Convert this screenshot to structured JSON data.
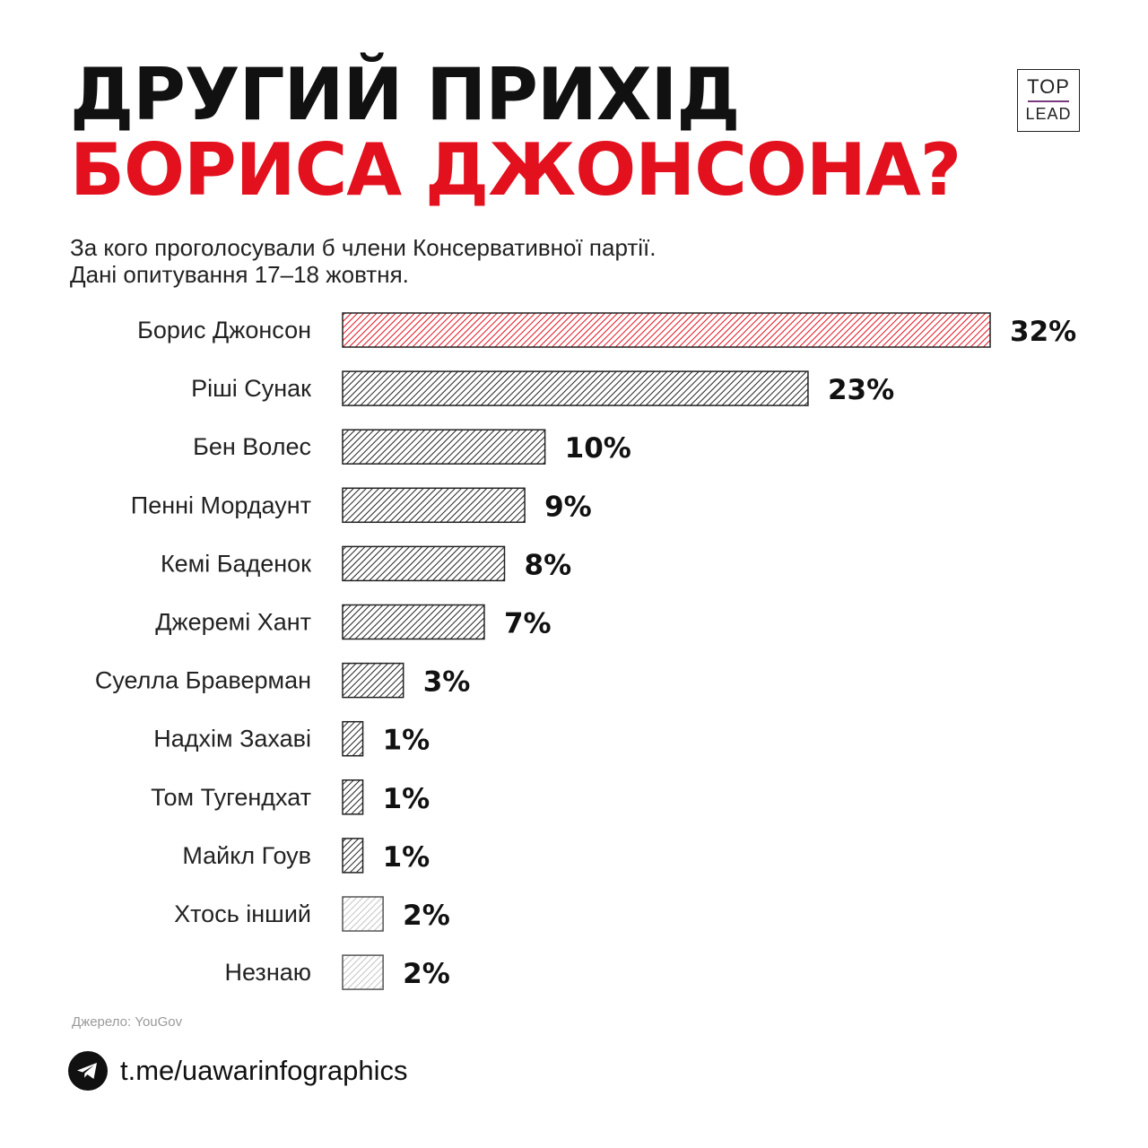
{
  "title": {
    "line1": "ДРУГИЙ ПРИХІД",
    "line2": "БОРИСА ДЖОНСОНА?",
    "line2_color": "#e3101e"
  },
  "logo": {
    "top": "TOP",
    "bottom": "LEAD",
    "accent": "#7a3b7e"
  },
  "subtitle": {
    "line1": "За кого проголосували б члени Консервативної партії.",
    "line2": "Дані опитування 17–18 жовтня."
  },
  "chart_data": {
    "type": "bar",
    "orientation": "horizontal",
    "title": "",
    "xlabel": "",
    "ylabel": "",
    "xlim": [
      0,
      32
    ],
    "grid": false,
    "value_suffix": "%",
    "categories": [
      "Борис Джонсон",
      "Ріші Сунак",
      "Бен Волес",
      "Пенні Мордаунт",
      "Кемі Баденок",
      "Джеремі Хант",
      "Суелла Браверман",
      "Надхім Захаві",
      "Том Тугендхат",
      "Майкл Гоув",
      "Хтось інший",
      "Незнаю"
    ],
    "values": [
      32,
      23,
      10,
      9,
      8,
      7,
      3,
      1,
      1,
      1,
      2,
      2
    ],
    "labels": [
      "32%",
      "23%",
      "10%",
      "9%",
      "8%",
      "7%",
      "3%",
      "1%",
      "1%",
      "1%",
      "2%",
      "2%"
    ],
    "bar_styles": [
      "highlight",
      "normal",
      "normal",
      "normal",
      "normal",
      "normal",
      "normal",
      "normal",
      "normal",
      "normal",
      "light",
      "light"
    ],
    "colors": {
      "highlight": "#e3101e",
      "normal": "#222222",
      "light": "#b5b5b5"
    }
  },
  "footer": {
    "source": "Джерело: YouGov",
    "link": "t.me/uawarinfographics"
  }
}
